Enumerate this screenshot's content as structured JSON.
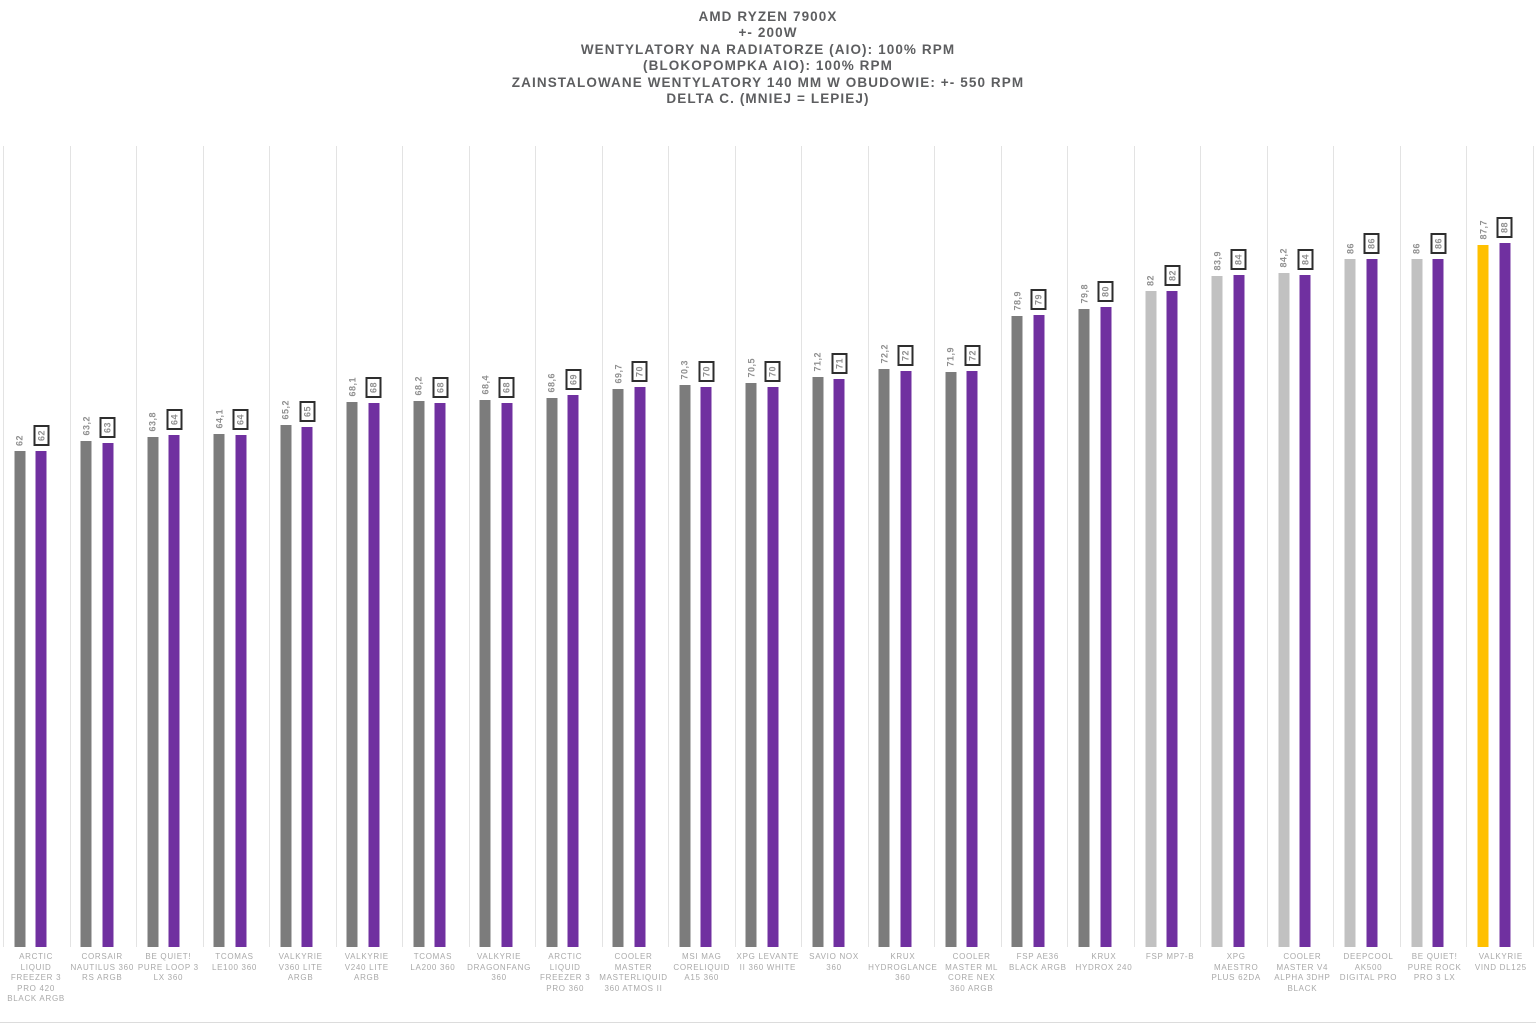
{
  "title": {
    "lines": [
      "AMD RYZEN 7900X",
      "+- 200W",
      "WENTYLATORY NA RADIATORZE (AIO): 100% RPM",
      "(BLOKOPOMPKA AIO): 100% RPM",
      "ZAINSTALOWANE WENTYLATORY 140 MM W OBUDOWIE: +- 550 RPM",
      "DELTA C. (MNIEJ = LEPIEJ)"
    ]
  },
  "palette": {
    "bar_gray": "#7c7c7c",
    "bar_light_gray": "#c1c1c1",
    "bar_gold": "#ffc000",
    "bar_purple": "#7030a0",
    "gridline": "#e3e3e3",
    "value_text": "#8f8f8f",
    "category_text": "#a9a9a9",
    "title_text": "#5d5e60",
    "value_box_border": "#2e2e2e"
  },
  "chart_data": {
    "type": "bar",
    "title": "AMD RYZEN 7900X +- 200W / WENTYLATORY NA RADIATORZE (AIO): 100% RPM / (BLOKOPOMPKA AIO): 100% RPM / ZAINSTALOWANE WENTYLATORY 140 MM W OBUDOWIE: +- 550 RPM / DELTA C. (MNIEJ = LEPIEJ)",
    "xlabel": "",
    "ylabel": "Delta C.",
    "ylim": [
      0,
      100
    ],
    "grid": "vertical-category-separators",
    "legend": "none",
    "categories": [
      "ARCTIC LIQUID FREEZER 3 PRO 420 BLACK ARGB",
      "CORSAIR NAUTILUS 360 RS ARGB",
      "BE QUIET! PURE LOOP 3 LX 360",
      "TCOMAS LE100 360",
      "VALKYRIE V360 LITE ARGB",
      "VALKYRIE V240 LITE ARGB",
      "TCOMAS LA200 360",
      "VALKYRIE DRAGONFANG 360",
      "ARCTIC LIQUID FREEZER 3 PRO 360",
      "COOLER MASTER MASTERLIQUID 360 ATMOS II",
      "MSI MAG CORELIQUID A15 360",
      "XPG LEVANTE II 360 WHITE",
      "SAVIO NOX 360",
      "KRUX HYDROGLANCE 360",
      "COOLER MASTER ML CORE NEX 360 ARGB",
      "FSP AE36 BLACK ARGB",
      "KRUX HYDROX 240",
      "FSP MP7-B",
      "XPG MAESTRO PLUS 62DA",
      "COOLER MASTER V4 ALPHA 3DHP BLACK",
      "DEEPCOOL AK500 DIGITAL PRO",
      "BE QUIET! PURE ROCK PRO 3 LX",
      "VALKYRIE VIND DL125"
    ],
    "series": [
      {
        "name": "left-bar-exact-value",
        "values": [
          62,
          63.2,
          63.8,
          64.1,
          65.2,
          68.1,
          68.2,
          68.4,
          68.6,
          69.7,
          70.3,
          70.5,
          71.2,
          72.2,
          71.9,
          78.9,
          79.8,
          82,
          83.9,
          84.2,
          86,
          86,
          87.7
        ],
        "labels": [
          "62",
          "63,2",
          "63,8",
          "64,1",
          "65,2",
          "68,1",
          "68,2",
          "68,4",
          "68,6",
          "69,7",
          "70,3",
          "70,5",
          "71,2",
          "72,2",
          "71,9",
          "78,9",
          "79,8",
          "82",
          "83,9",
          "84,2",
          "86",
          "86",
          "87,7"
        ],
        "color_keys": [
          "gray",
          "gray",
          "gray",
          "gray",
          "gray",
          "gray",
          "gray",
          "gray",
          "gray",
          "gray",
          "gray",
          "gray",
          "gray",
          "gray",
          "gray",
          "gray",
          "gray",
          "light",
          "light",
          "light",
          "light",
          "light",
          "gold"
        ]
      },
      {
        "name": "right-bar-rounded-value-boxed",
        "values": [
          62,
          63,
          64,
          64,
          65,
          68,
          68,
          68,
          69,
          70,
          70,
          70,
          71,
          72,
          72,
          79,
          80,
          82,
          84,
          84,
          86,
          86,
          88
        ],
        "labels": [
          "62",
          "63",
          "64",
          "64",
          "65",
          "68",
          "68",
          "68",
          "69",
          "70",
          "70",
          "70",
          "71",
          "72",
          "72",
          "79",
          "80",
          "82",
          "84",
          "84",
          "86",
          "86",
          "88"
        ],
        "color_keys": [
          "purple",
          "purple",
          "purple",
          "purple",
          "purple",
          "purple",
          "purple",
          "purple",
          "purple",
          "purple",
          "purple",
          "purple",
          "purple",
          "purple",
          "purple",
          "purple",
          "purple",
          "purple",
          "purple",
          "purple",
          "purple",
          "purple",
          "purple"
        ]
      }
    ]
  }
}
